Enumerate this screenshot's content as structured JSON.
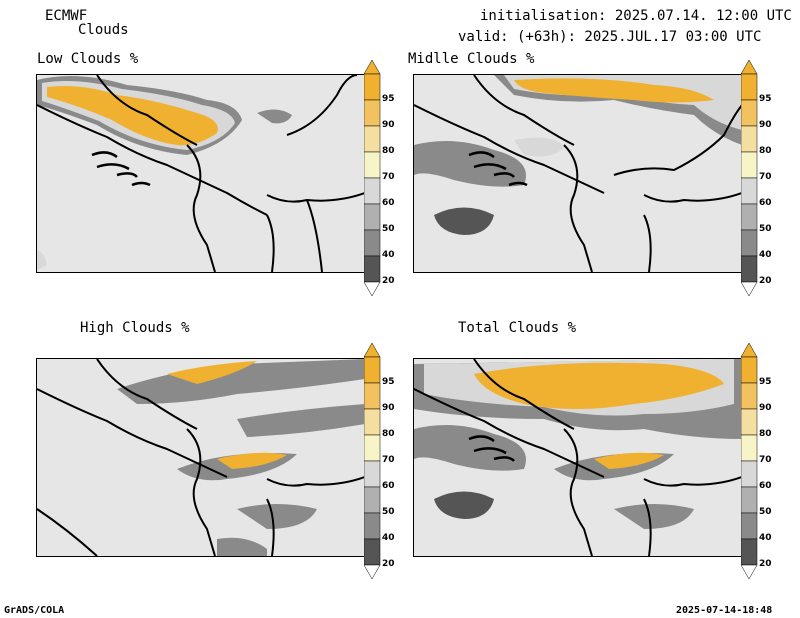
{
  "header": {
    "model": "ECMWF",
    "product": "Clouds",
    "init_line": "initialisation: 2025.07.14. 12:00 UTC",
    "valid_line": "valid: (+63h): 2025.JUL.17 03:00 UTC"
  },
  "panels": [
    {
      "title": "Low Clouds %"
    },
    {
      "title": "Midlle Clouds %"
    },
    {
      "title": "High Clouds %"
    },
    {
      "title": "Total Clouds %"
    }
  ],
  "colorbar": {
    "levels": [
      "95",
      "90",
      "80",
      "70",
      "60",
      "50",
      "40",
      "20"
    ],
    "colors": [
      "#f0b030",
      "#f2c260",
      "#f5dfa0",
      "#f7f5c8",
      "#d8d8d8",
      "#b0b0b0",
      "#8a8a8a",
      "#555555"
    ]
  },
  "footer": {
    "left": "GrADS/COLA",
    "right": "2025-07-14-18:48"
  }
}
